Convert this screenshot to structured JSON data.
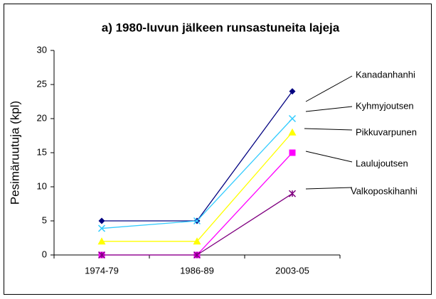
{
  "chart_data": {
    "type": "line",
    "title": "a) 1980-luvun jälkeen runsastuneita lajeja",
    "y_label": "Pesimäruutuja (kpl)",
    "categories": [
      "1974-79",
      "1986-89",
      "2003-05"
    ],
    "series": [
      {
        "name": "Kanadanhanhi",
        "color": "#000080",
        "marker": "diamond",
        "values": [
          5,
          5,
          24
        ]
      },
      {
        "name": "Kyhmyjoutsen",
        "color": "#33ccff",
        "marker": "x",
        "values": [
          3.9,
          5,
          20
        ]
      },
      {
        "name": "Pikkuvarpunen",
        "color": "#ffff00",
        "marker": "triangle",
        "values": [
          2,
          2,
          18
        ]
      },
      {
        "name": "Laulujoutsen",
        "color": "#ff00ff",
        "marker": "square",
        "values": [
          0,
          0,
          15
        ]
      },
      {
        "name": "Valkoposkihanhi",
        "color": "#800080",
        "marker": "star",
        "values": [
          0,
          0,
          9
        ]
      }
    ],
    "ylim": [
      0,
      30
    ],
    "yticks": [
      0,
      5,
      10,
      15,
      20,
      25,
      30
    ],
    "grid": false
  }
}
